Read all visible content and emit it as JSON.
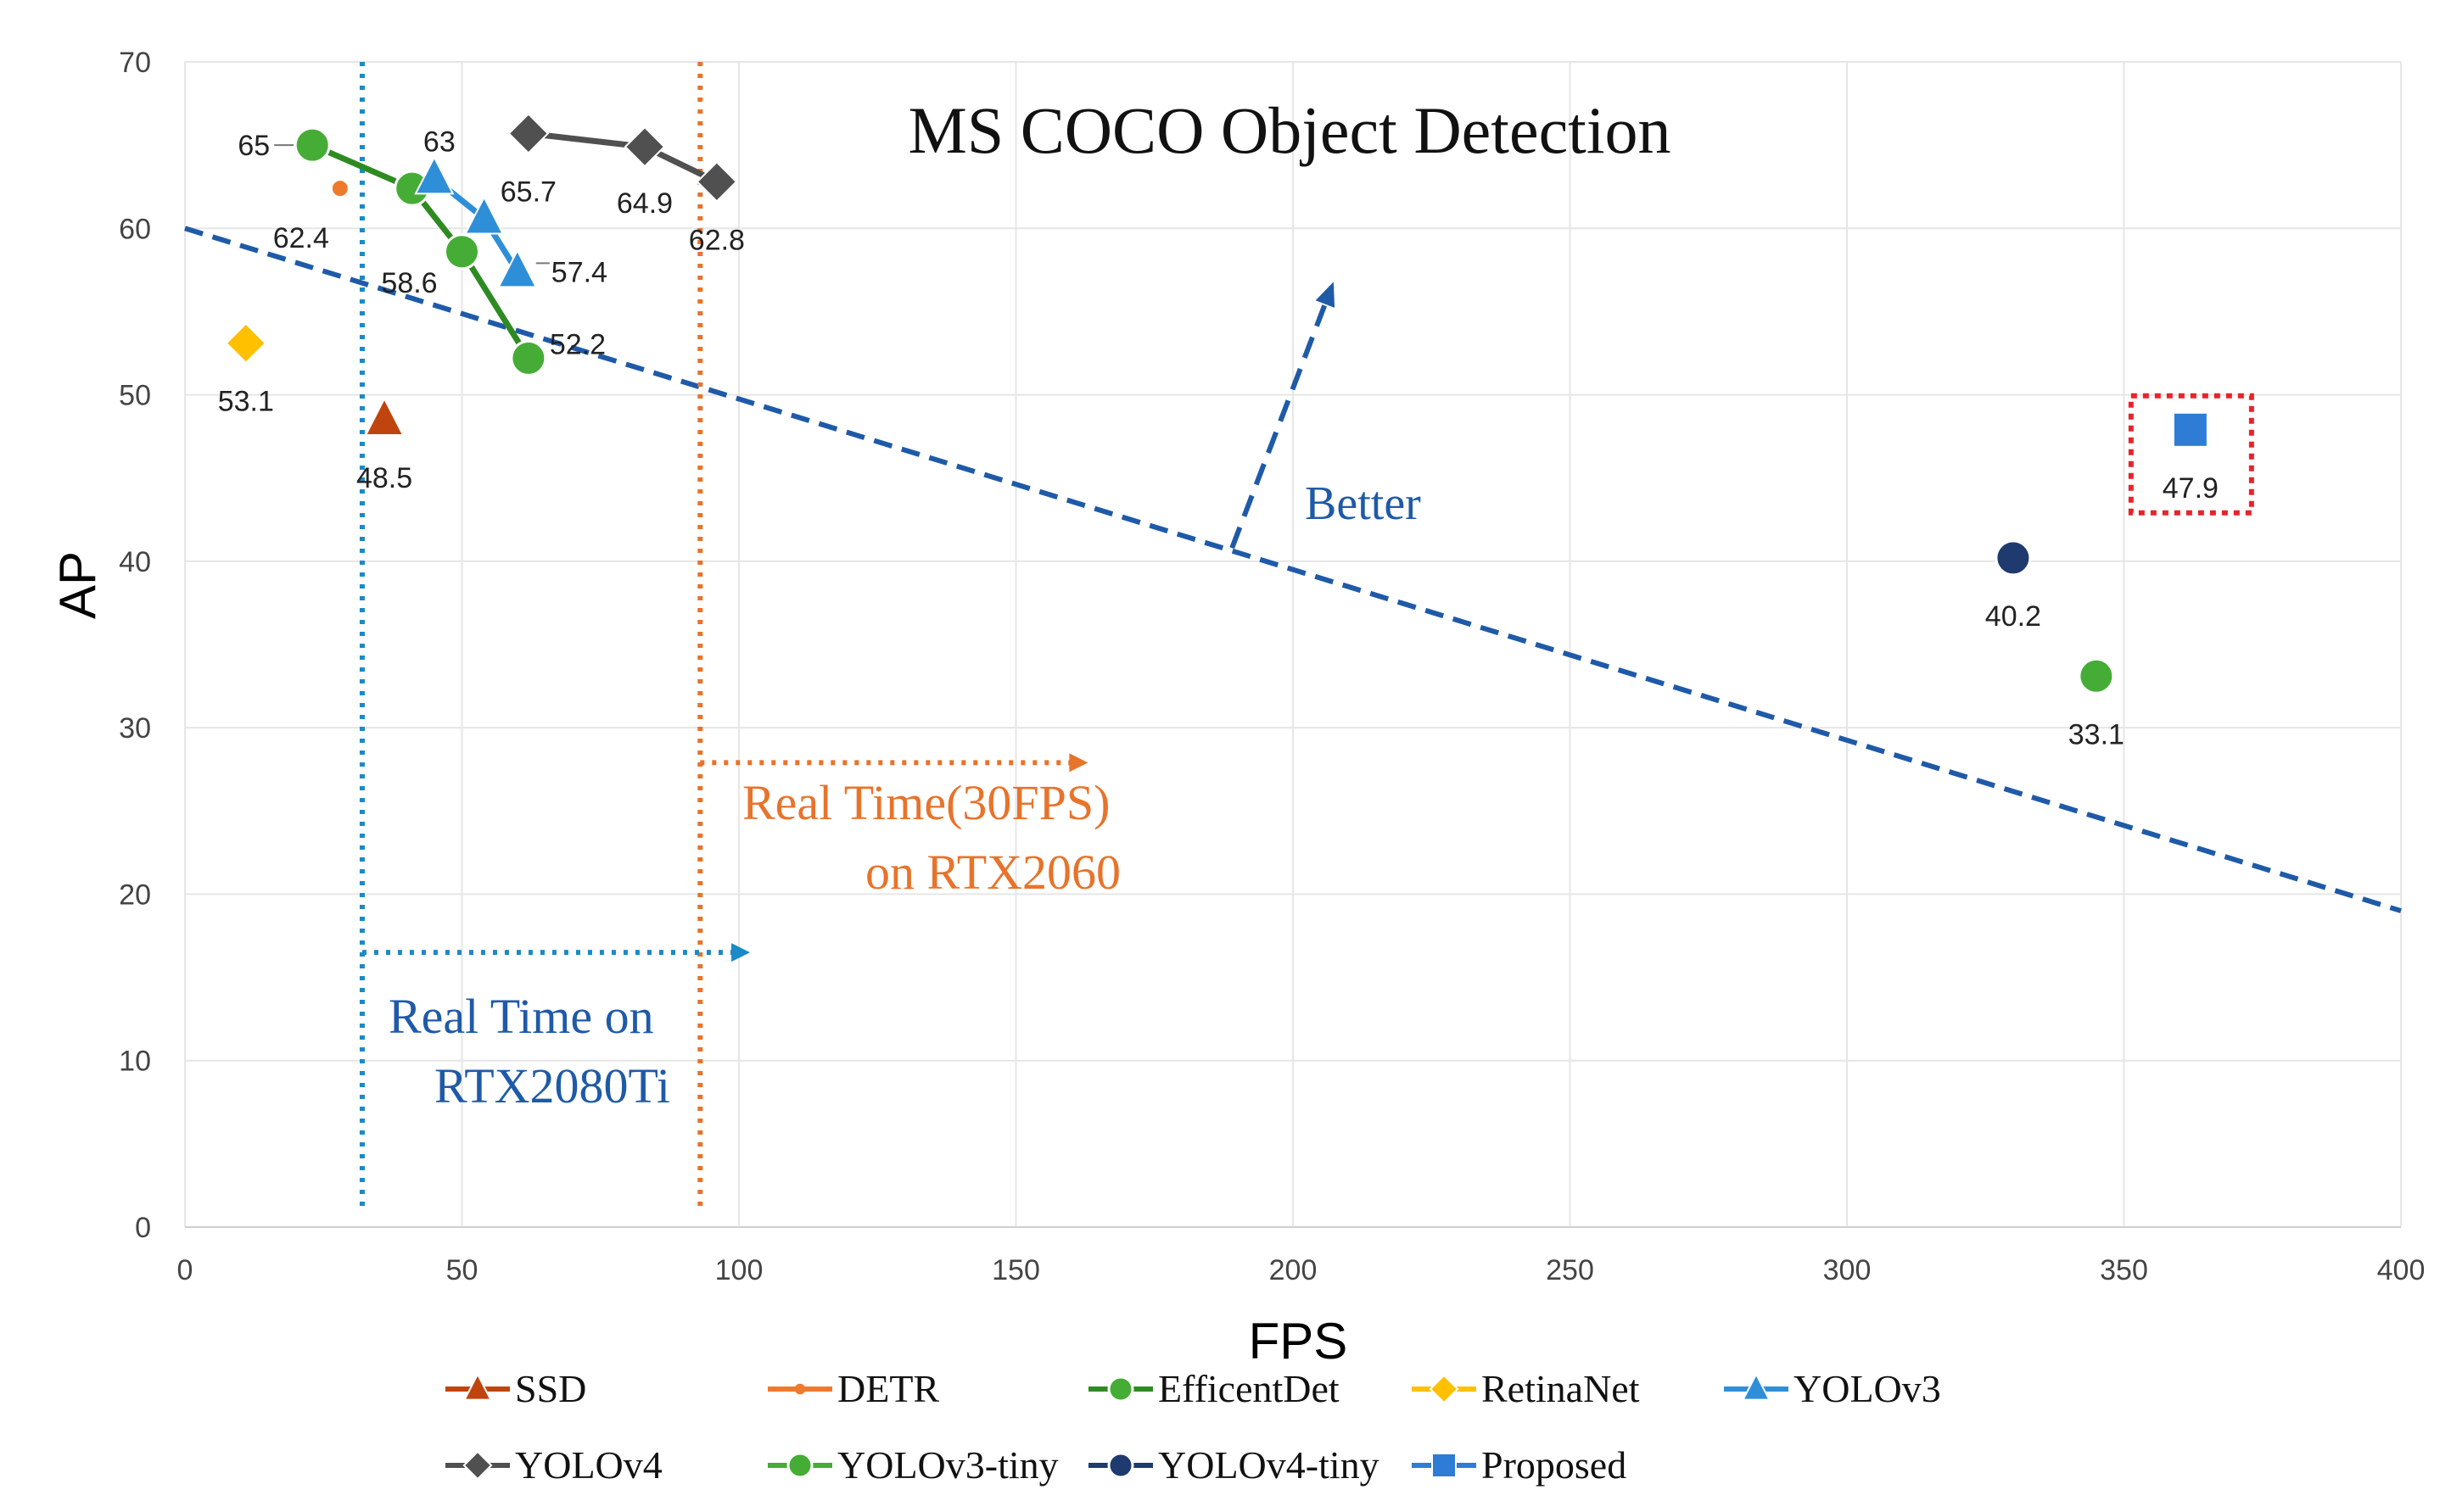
{
  "chart_data": {
    "type": "scatter",
    "title": "MS COCO Object Detection",
    "xlabel": "FPS",
    "ylabel": "AP",
    "xlim": [
      0,
      400
    ],
    "ylim": [
      0,
      70
    ],
    "xticks": [
      0,
      50,
      100,
      150,
      200,
      250,
      300,
      350,
      400
    ],
    "yticks": [
      0,
      10,
      20,
      30,
      40,
      50,
      60,
      70
    ],
    "grid": true,
    "legend_position": "bottom",
    "series": [
      {
        "name": "SSD",
        "marker": "triangle",
        "color": "#c0440e",
        "line": false,
        "points": [
          {
            "x": 36,
            "y": 48.5,
            "label": "48.5"
          }
        ]
      },
      {
        "name": "DETR",
        "marker": "small-circle",
        "color": "#f07a2c",
        "line": false,
        "points": [
          {
            "x": 28,
            "y": 62.4,
            "label": "62.4"
          }
        ]
      },
      {
        "name": "EfficentDet",
        "marker": "circle",
        "color": "#45ad35",
        "line": true,
        "line_color": "#2e8b22",
        "points": [
          {
            "x": 23,
            "y": 65,
            "label": "65"
          },
          {
            "x": 41,
            "y": 62.4,
            "label": ""
          },
          {
            "x": 50,
            "y": 58.6,
            "label": "58.6"
          },
          {
            "x": 62,
            "y": 52.2,
            "label": "52.2"
          }
        ]
      },
      {
        "name": "RetinaNet",
        "marker": "diamond",
        "color": "#ffc000",
        "line": false,
        "points": [
          {
            "x": 11,
            "y": 53.1,
            "label": "53.1"
          }
        ]
      },
      {
        "name": "YOLOv3",
        "marker": "triangle",
        "color": "#2e8fd8",
        "line": true,
        "points": [
          {
            "x": 45,
            "y": 63,
            "label": "63"
          },
          {
            "x": 54,
            "y": 60.6,
            "label": ""
          },
          {
            "x": 60,
            "y": 57.4,
            "label": "57.4"
          }
        ]
      },
      {
        "name": "YOLOv4",
        "marker": "diamond",
        "color": "#505050",
        "line": true,
        "points": [
          {
            "x": 62,
            "y": 65.7,
            "label": "65.7"
          },
          {
            "x": 83,
            "y": 64.9,
            "label": "64.9"
          },
          {
            "x": 96,
            "y": 62.8,
            "label": "62.8"
          }
        ]
      },
      {
        "name": "YOLOv3-tiny",
        "marker": "circle",
        "color": "#45ad35",
        "line": false,
        "points": [
          {
            "x": 345,
            "y": 33.1,
            "label": "33.1"
          }
        ]
      },
      {
        "name": "YOLOv4-tiny",
        "marker": "circle",
        "color": "#1f3a6e",
        "line": false,
        "points": [
          {
            "x": 330,
            "y": 40.2,
            "label": "40.2"
          }
        ]
      },
      {
        "name": "Proposed",
        "marker": "square",
        "color": "#2e7cd6",
        "line": false,
        "points": [
          {
            "x": 362,
            "y": 47.9,
            "label": "47.9"
          }
        ]
      }
    ],
    "reference_lines": [
      {
        "kind": "trend",
        "from": [
          0,
          60
        ],
        "to": [
          400,
          19
        ],
        "color": "#1f5aa8"
      },
      {
        "kind": "vertical",
        "x": 32,
        "color": "#1a8ac8"
      },
      {
        "kind": "vertical",
        "x": 93,
        "color": "#e8732a"
      }
    ],
    "annotations": [
      {
        "id": "better",
        "text": "Better",
        "color": "#1f5aa8"
      },
      {
        "id": "rt2060_line1",
        "text": "Real Time(30FPS)",
        "color": "#e8732a"
      },
      {
        "id": "rt2060_line2",
        "text": "on RTX2060",
        "color": "#e8732a"
      },
      {
        "id": "rt2080_line1",
        "text": "Real Time on",
        "color": "#1f5aa8"
      },
      {
        "id": "rt2080_line2",
        "text": "RTX2080Ti",
        "color": "#1f5aa8"
      }
    ]
  }
}
